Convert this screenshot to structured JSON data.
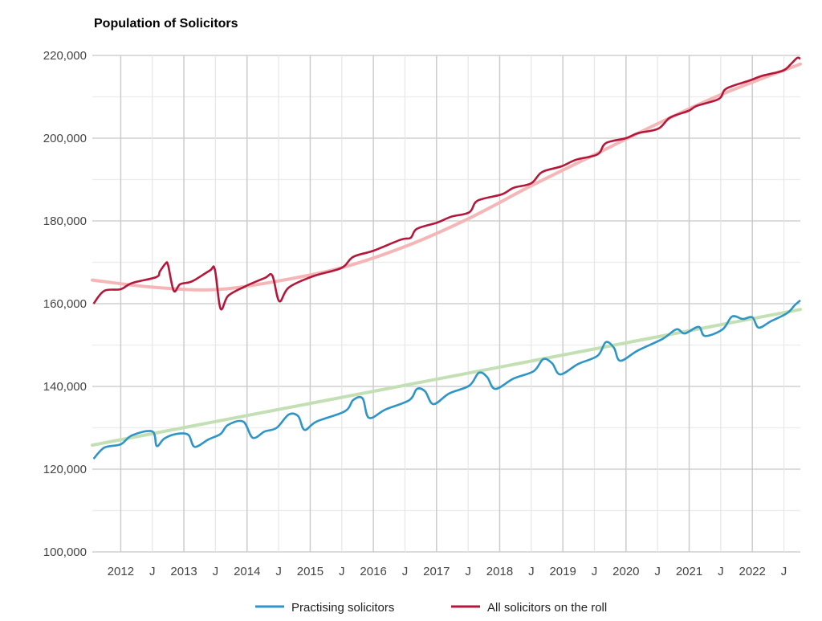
{
  "chart_data": {
    "type": "line",
    "title": "Population of Solicitors",
    "xlabel": "",
    "ylabel": "",
    "ylim": [
      100000,
      220000
    ],
    "xlim": [
      2011.55,
      2022.76
    ],
    "grid": true,
    "legend_position": "bottom",
    "y_ticks": [
      "100,000",
      "120,000",
      "140,000",
      "160,000",
      "180,000",
      "200,000",
      "220,000"
    ],
    "x_ticks": [
      {
        "label": "2012",
        "x": 2012
      },
      {
        "label": "J",
        "x": 2012.5
      },
      {
        "label": "2013",
        "x": 2013
      },
      {
        "label": "J",
        "x": 2013.5
      },
      {
        "label": "2014",
        "x": 2014
      },
      {
        "label": "J",
        "x": 2014.5
      },
      {
        "label": "2015",
        "x": 2015
      },
      {
        "label": "J",
        "x": 2015.5
      },
      {
        "label": "2016",
        "x": 2016
      },
      {
        "label": "J",
        "x": 2016.5
      },
      {
        "label": "2017",
        "x": 2017
      },
      {
        "label": "J",
        "x": 2017.5
      },
      {
        "label": "2018",
        "x": 2018
      },
      {
        "label": "J",
        "x": 2018.5
      },
      {
        "label": "2019",
        "x": 2019
      },
      {
        "label": "J",
        "x": 2019.5
      },
      {
        "label": "2020",
        "x": 2020
      },
      {
        "label": "J",
        "x": 2020.5
      },
      {
        "label": "2021",
        "x": 2021
      },
      {
        "label": "J",
        "x": 2021.5
      },
      {
        "label": "2022",
        "x": 2022
      },
      {
        "label": "J",
        "x": 2022.5
      }
    ],
    "series": [
      {
        "name": "Practising solicitors",
        "color": "#2e95c6",
        "points": [
          [
            2011.57,
            122500
          ],
          [
            2011.74,
            125200
          ],
          [
            2012.0,
            126000
          ],
          [
            2012.18,
            128200
          ],
          [
            2012.5,
            129100
          ],
          [
            2012.57,
            125600
          ],
          [
            2012.69,
            127400
          ],
          [
            2012.88,
            128500
          ],
          [
            2013.07,
            128300
          ],
          [
            2013.17,
            125400
          ],
          [
            2013.39,
            127200
          ],
          [
            2013.58,
            128500
          ],
          [
            2013.7,
            130700
          ],
          [
            2013.94,
            131500
          ],
          [
            2014.09,
            127600
          ],
          [
            2014.28,
            129100
          ],
          [
            2014.47,
            130000
          ],
          [
            2014.66,
            133200
          ],
          [
            2014.81,
            132800
          ],
          [
            2014.91,
            129500
          ],
          [
            2015.1,
            131500
          ],
          [
            2015.55,
            134000
          ],
          [
            2015.68,
            136700
          ],
          [
            2015.83,
            137100
          ],
          [
            2015.93,
            132400
          ],
          [
            2016.19,
            134400
          ],
          [
            2016.57,
            136700
          ],
          [
            2016.69,
            139400
          ],
          [
            2016.82,
            138800
          ],
          [
            2016.95,
            135700
          ],
          [
            2017.2,
            138300
          ],
          [
            2017.52,
            140200
          ],
          [
            2017.67,
            143300
          ],
          [
            2017.8,
            142300
          ],
          [
            2017.93,
            139400
          ],
          [
            2018.22,
            141900
          ],
          [
            2018.54,
            143700
          ],
          [
            2018.69,
            146600
          ],
          [
            2018.83,
            145600
          ],
          [
            2018.96,
            142900
          ],
          [
            2019.24,
            145400
          ],
          [
            2019.55,
            147400
          ],
          [
            2019.68,
            150700
          ],
          [
            2019.81,
            149300
          ],
          [
            2019.91,
            146200
          ],
          [
            2020.19,
            148700
          ],
          [
            2020.58,
            151500
          ],
          [
            2020.8,
            153800
          ],
          [
            2020.93,
            152800
          ],
          [
            2021.15,
            154400
          ],
          [
            2021.25,
            152200
          ],
          [
            2021.53,
            153800
          ],
          [
            2021.68,
            156900
          ],
          [
            2021.85,
            156300
          ],
          [
            2022.0,
            156700
          ],
          [
            2022.1,
            154200
          ],
          [
            2022.29,
            155700
          ],
          [
            2022.55,
            157700
          ],
          [
            2022.67,
            159600
          ],
          [
            2022.76,
            160800
          ]
        ]
      },
      {
        "name": "All solicitors on the roll",
        "color": "#b5173b",
        "points": [
          [
            2011.57,
            160000
          ],
          [
            2011.74,
            163100
          ],
          [
            2012.0,
            163500
          ],
          [
            2012.18,
            165000
          ],
          [
            2012.56,
            166400
          ],
          [
            2012.62,
            167800
          ],
          [
            2012.71,
            169700
          ],
          [
            2012.75,
            169300
          ],
          [
            2012.84,
            163100
          ],
          [
            2012.94,
            164700
          ],
          [
            2013.13,
            165400
          ],
          [
            2013.41,
            168000
          ],
          [
            2013.49,
            168300
          ],
          [
            2013.58,
            158800
          ],
          [
            2013.7,
            161900
          ],
          [
            2013.96,
            164100
          ],
          [
            2014.28,
            166200
          ],
          [
            2014.4,
            166800
          ],
          [
            2014.51,
            160600
          ],
          [
            2014.66,
            163900
          ],
          [
            2015.04,
            166600
          ],
          [
            2015.49,
            168600
          ],
          [
            2015.68,
            171300
          ],
          [
            2016.0,
            172800
          ],
          [
            2016.44,
            175500
          ],
          [
            2016.59,
            175900
          ],
          [
            2016.69,
            178100
          ],
          [
            2017.01,
            179600
          ],
          [
            2017.23,
            181000
          ],
          [
            2017.52,
            182100
          ],
          [
            2017.65,
            184900
          ],
          [
            2018.03,
            186400
          ],
          [
            2018.22,
            188000
          ],
          [
            2018.5,
            189100
          ],
          [
            2018.67,
            191800
          ],
          [
            2018.98,
            193200
          ],
          [
            2019.21,
            194800
          ],
          [
            2019.55,
            196100
          ],
          [
            2019.68,
            198800
          ],
          [
            2020.0,
            200000
          ],
          [
            2020.19,
            201200
          ],
          [
            2020.51,
            202300
          ],
          [
            2020.7,
            205000
          ],
          [
            2020.99,
            206600
          ],
          [
            2021.12,
            207800
          ],
          [
            2021.47,
            209500
          ],
          [
            2021.59,
            212000
          ],
          [
            2021.97,
            214000
          ],
          [
            2022.16,
            215100
          ],
          [
            2022.48,
            216300
          ],
          [
            2022.61,
            217900
          ],
          [
            2022.71,
            219400
          ],
          [
            2022.76,
            219200
          ]
        ]
      }
    ],
    "trendlines": [
      {
        "for": "Practising solicitors",
        "color": "#c3e0b5",
        "points": [
          [
            2011.55,
            125800
          ],
          [
            2022.76,
            158600
          ]
        ]
      },
      {
        "for": "All solicitors on the roll",
        "color": "#f4b6b6",
        "points": [
          [
            2011.55,
            165700
          ],
          [
            2012.5,
            164000
          ],
          [
            2013.5,
            163400
          ],
          [
            2014.5,
            165500
          ],
          [
            2015.5,
            168700
          ],
          [
            2016.5,
            173800
          ],
          [
            2017.5,
            180500
          ],
          [
            2018.5,
            188500
          ],
          [
            2019.5,
            196000
          ],
          [
            2020.5,
            203500
          ],
          [
            2021.5,
            210500
          ],
          [
            2022.76,
            217900
          ]
        ]
      }
    ]
  }
}
